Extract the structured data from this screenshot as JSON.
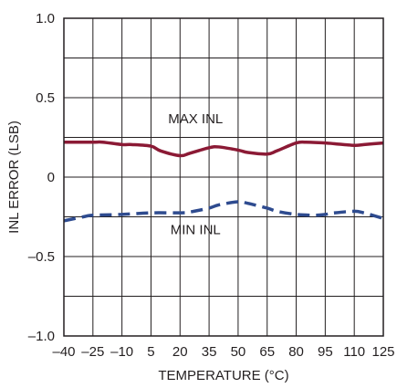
{
  "chart_data": {
    "type": "line",
    "title": "",
    "xlabel": "TEMPERATURE (°C)",
    "ylabel": "INL ERROR (LSB)",
    "xlim": [
      -40,
      125
    ],
    "ylim": [
      -1.0,
      1.0
    ],
    "grid": true,
    "legend": "none",
    "x_tick_values": [
      -40,
      -25,
      -10,
      5,
      20,
      35,
      50,
      65,
      80,
      95,
      110,
      125
    ],
    "x_tick_labels": [
      "–40",
      "–25",
      "–10",
      "5",
      "20",
      "35",
      "50",
      "65",
      "80",
      "95",
      "110",
      "125"
    ],
    "y_tick_values": [
      -1.0,
      -0.5,
      0,
      0.5,
      1.0
    ],
    "y_tick_labels": [
      "–1.0",
      "–0.5",
      "0",
      "0.5",
      "1.0"
    ],
    "series": [
      {
        "name": "MAX INL",
        "color": "#8b1a35",
        "style": "solid",
        "x": [
          -40,
          -25,
          -20,
          -10,
          -5,
          5,
          10,
          20,
          25,
          35,
          40,
          50,
          55,
          65,
          70,
          80,
          85,
          95,
          100,
          110,
          115,
          125
        ],
        "y": [
          0.22,
          0.22,
          0.22,
          0.205,
          0.205,
          0.195,
          0.165,
          0.135,
          0.15,
          0.185,
          0.19,
          0.17,
          0.155,
          0.145,
          0.165,
          0.215,
          0.22,
          0.215,
          0.21,
          0.2,
          0.205,
          0.215
        ]
      },
      {
        "name": "MIN INL",
        "color": "#2e4b8f",
        "style": "dashed",
        "x": [
          -40,
          -30,
          -25,
          -10,
          5,
          20,
          25,
          35,
          40,
          50,
          55,
          65,
          70,
          80,
          90,
          95,
          100,
          110,
          115,
          125
        ],
        "y": [
          -0.275,
          -0.25,
          -0.24,
          -0.235,
          -0.225,
          -0.225,
          -0.22,
          -0.195,
          -0.175,
          -0.155,
          -0.165,
          -0.195,
          -0.215,
          -0.235,
          -0.24,
          -0.235,
          -0.225,
          -0.215,
          -0.225,
          -0.26
        ]
      }
    ],
    "annotations": [
      {
        "text": "MAX INL",
        "x": 28,
        "y": 0.34
      },
      {
        "text": "MIN INL",
        "x": 28,
        "y": -0.36
      }
    ]
  }
}
